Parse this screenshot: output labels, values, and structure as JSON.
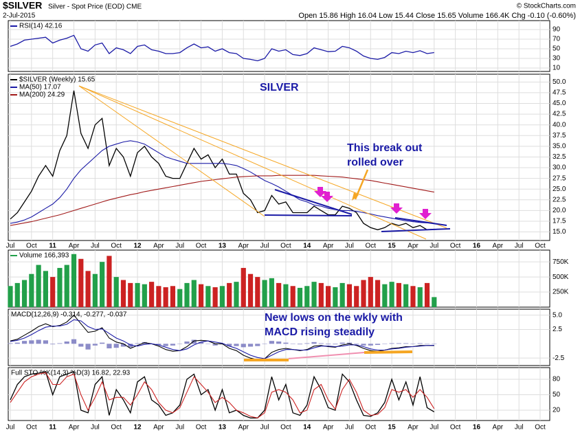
{
  "chart_data": {
    "type": "stock",
    "title": "$SILVER",
    "subtitle": "Silver - Spot Price (EOD) CME",
    "date": "2-Jul-2015",
    "source": "© StockCharts.com",
    "quote": "Open 15.86  High 16.04  Low 15.44  Close 15.65  Volume 166.4K  Chg -0.10 (-0.60%)",
    "annotations": [
      "SILVER",
      "This break out",
      "rolled over",
      "New lows on the wkly with",
      "MACD rising steadily"
    ],
    "xlim": [
      "2010-07",
      "2016-10"
    ],
    "xticks": [
      {
        "value": "2010-07",
        "label": "Jul"
      },
      {
        "value": "2010-10",
        "label": "Oct"
      },
      {
        "value": "2011-01",
        "label": "11"
      },
      {
        "value": "2011-04",
        "label": "Apr"
      },
      {
        "value": "2011-07",
        "label": "Jul"
      },
      {
        "value": "2011-10",
        "label": "Oct"
      },
      {
        "value": "2012-01",
        "label": "12"
      },
      {
        "value": "2012-04",
        "label": "Apr"
      },
      {
        "value": "2012-07",
        "label": "Jul"
      },
      {
        "value": "2012-10",
        "label": "Oct"
      },
      {
        "value": "2013-01",
        "label": "13"
      },
      {
        "value": "2013-04",
        "label": "Apr"
      },
      {
        "value": "2013-07",
        "label": "Jul"
      },
      {
        "value": "2013-10",
        "label": "Oct"
      },
      {
        "value": "2014-01",
        "label": "14"
      },
      {
        "value": "2014-04",
        "label": "Apr"
      },
      {
        "value": "2014-07",
        "label": "Jul"
      },
      {
        "value": "2014-10",
        "label": "Oct"
      },
      {
        "value": "2015-01",
        "label": "15"
      },
      {
        "value": "2015-04",
        "label": "Apr"
      },
      {
        "value": "2015-07",
        "label": "Jul"
      },
      {
        "value": "2015-10",
        "label": "Oct"
      },
      {
        "value": "2016-01",
        "label": "16"
      },
      {
        "value": "2016-04",
        "label": "Apr"
      },
      {
        "value": "2016-07",
        "label": "Jul"
      },
      {
        "value": "2016-10",
        "label": "Oct"
      }
    ],
    "x": [
      "2010-07",
      "2010-08",
      "2010-09",
      "2010-10",
      "2010-11",
      "2010-12",
      "2011-01",
      "2011-02",
      "2011-03",
      "2011-04",
      "2011-05",
      "2011-06",
      "2011-07",
      "2011-08",
      "2011-09",
      "2011-10",
      "2011-11",
      "2011-12",
      "2012-01",
      "2012-02",
      "2012-03",
      "2012-04",
      "2012-05",
      "2012-06",
      "2012-07",
      "2012-08",
      "2012-09",
      "2012-10",
      "2012-11",
      "2012-12",
      "2013-01",
      "2013-02",
      "2013-03",
      "2013-04",
      "2013-05",
      "2013-06",
      "2013-07",
      "2013-08",
      "2013-09",
      "2013-10",
      "2013-11",
      "2013-12",
      "2014-01",
      "2014-02",
      "2014-03",
      "2014-04",
      "2014-05",
      "2014-06",
      "2014-07",
      "2014-08",
      "2014-09",
      "2014-10",
      "2014-11",
      "2014-12",
      "2015-01",
      "2015-02",
      "2015-03",
      "2015-04",
      "2015-05",
      "2015-06",
      "2015-07"
    ],
    "panels": [
      {
        "ylim": [
          0,
          100
        ],
        "yticks": [
          90,
          70,
          50,
          30,
          10
        ],
        "grid": true,
        "series": [
          {
            "name": "RSI(14) 42.16",
            "type": "line",
            "color": "#1a1aa6",
            "values": [
              55,
              60,
              68,
              70,
              72,
              74,
              62,
              68,
              72,
              78,
              50,
              45,
              58,
              62,
              40,
              52,
              48,
              40,
              55,
              58,
              48,
              45,
              40,
              40,
              42,
              52,
              60,
              52,
              54,
              45,
              50,
              42,
              40,
              30,
              28,
              25,
              30,
              50,
              45,
              48,
              38,
              36,
              40,
              52,
              48,
              44,
              45,
              55,
              52,
              45,
              35,
              30,
              28,
              32,
              42,
              40,
              45,
              42,
              46,
              40,
              42.16
            ]
          }
        ]
      },
      {
        "ylim": [
          13,
          51.5
        ],
        "yticks": [
          {
            "value": 50,
            "label": "50.0"
          },
          47.5,
          {
            "value": 45,
            "label": "45.0"
          },
          42.5,
          {
            "value": 40,
            "label": "40.0"
          },
          37.5,
          {
            "value": 35,
            "label": "35.0"
          },
          32.5,
          {
            "value": 30,
            "label": "30.0"
          },
          27.5,
          {
            "value": 25,
            "label": "25.0"
          },
          22.5,
          {
            "value": 20,
            "label": "20.0"
          },
          17.5,
          {
            "value": 15,
            "label": "15.0"
          }
        ],
        "grid": true,
        "series": [
          {
            "name": "$SILVER (Weekly) 15.65",
            "type": "line",
            "color": "#000000",
            "values": [
              18.0,
              19.5,
              22.0,
              24.5,
              28.0,
              30.5,
              28.0,
              34.0,
              37.5,
              48.0,
              38.0,
              34.5,
              40.0,
              41.5,
              30.5,
              34.5,
              32.5,
              28.0,
              33.5,
              35.0,
              32.5,
              31.0,
              28.0,
              27.5,
              27.5,
              31.0,
              34.5,
              32.0,
              33.0,
              30.0,
              32.0,
              28.5,
              28.5,
              24.0,
              22.5,
              19.5,
              20.0,
              23.5,
              21.5,
              22.0,
              19.5,
              19.5,
              19.5,
              21.0,
              20.0,
              19.0,
              19.0,
              21.0,
              20.5,
              19.5,
              17.0,
              16.0,
              15.5,
              16.0,
              17.0,
              16.5,
              17.0,
              16.0,
              16.5,
              15.5,
              15.65
            ]
          },
          {
            "name": "MA(50) 17.07",
            "type": "line",
            "color": "#1a1aa6",
            "values": [
              17.0,
              17.3,
              17.8,
              18.5,
              19.5,
              20.5,
              21.5,
              23,
              25,
              27.5,
              29.5,
              31,
              32.5,
              34,
              35,
              35.5,
              36,
              36.3,
              36,
              35.5,
              34.5,
              33.5,
              32.5,
              32,
              31.5,
              31,
              31,
              31,
              31,
              31,
              31,
              30.8,
              30.5,
              29.8,
              29,
              28,
              27,
              26.3,
              25.5,
              24.5,
              23.5,
              22.5,
              22,
              21.3,
              21,
              20.5,
              20.2,
              20,
              20,
              19.8,
              19.5,
              19.2,
              18.8,
              18.5,
              18.2,
              17.9,
              17.6,
              17.4,
              17.2,
              17.1,
              17.07
            ]
          },
          {
            "name": "MA(200) 24.29",
            "type": "line",
            "color": "#a01818",
            "values": [
              16.5,
              16.8,
              17.1,
              17.4,
              17.8,
              18.2,
              18.6,
              19.0,
              19.5,
              20.0,
              20.5,
              21.0,
              21.5,
              22.0,
              22.5,
              22.9,
              23.3,
              23.7,
              24.0,
              24.4,
              24.7,
              25.0,
              25.3,
              25.6,
              25.9,
              26.2,
              26.5,
              26.8,
              27.0,
              27.2,
              27.4,
              27.6,
              27.8,
              27.9,
              28.0,
              28.1,
              28.1,
              28.1,
              28.2,
              28.2,
              28.2,
              28.2,
              28.2,
              28.2,
              28.1,
              28.0,
              27.9,
              27.8,
              27.6,
              27.4,
              27.2,
              27.0,
              26.7,
              26.4,
              26.1,
              25.8,
              25.5,
              25.2,
              24.9,
              24.6,
              24.29
            ]
          }
        ]
      },
      {
        "ylim": [
          0,
          900000
        ],
        "yticks": [
          {
            "value": 750000,
            "label": "750K"
          },
          {
            "value": 500000,
            "label": "500K"
          },
          {
            "value": 250000,
            "label": "250K"
          }
        ],
        "grid": true,
        "series": [
          {
            "name": "Volume 166,393",
            "type": "bar",
            "color": "#22a04a",
            "down_color": "#cc2222",
            "values": [
              350000,
              400000,
              450000,
              550000,
              700000,
              600000,
              500000,
              650000,
              700000,
              880000,
              800000,
              600000,
              550000,
              750000,
              850000,
              500000,
              450000,
              400000,
              400000,
              380000,
              420000,
              350000,
              330000,
              350000,
              300000,
              400000,
              450000,
              380000,
              350000,
              330000,
              350000,
              400000,
              420000,
              650000,
              550000,
              500000,
              450000,
              480000,
              400000,
              380000,
              350000,
              320000,
              350000,
              420000,
              400000,
              350000,
              330000,
              400000,
              380000,
              350000,
              450000,
              500000,
              450000,
              380000,
              420000,
              400000,
              380000,
              350000,
              330000,
              400000,
              166393
            ]
          }
        ]
      },
      {
        "label": "MACD(12,26,9) -0.314, -0.277, -0.037",
        "ylim": [
          -3.8,
          5.8
        ],
        "yticks": [
          {
            "value": 5,
            "label": "5.0"
          },
          2.5,
          -2.5
        ],
        "grid": true,
        "series": [
          {
            "type": "bar",
            "color": "#8c8cc8",
            "values": [
              0.1,
              0.2,
              0.5,
              0.6,
              0.7,
              0.6,
              -0.1,
              0.1,
              0.4,
              0.8,
              -0.5,
              -1.0,
              -0.3,
              0.2,
              -0.8,
              -0.7,
              -0.5,
              -0.6,
              0.1,
              0.3,
              0,
              -0.2,
              -0.4,
              -0.3,
              0,
              0.4,
              0.7,
              0.3,
              0,
              -0.3,
              -0.1,
              -0.4,
              -0.4,
              -0.6,
              -0.5,
              -0.4,
              0,
              0.5,
              0.4,
              0.2,
              0,
              -0.1,
              0.1,
              0.3,
              0.1,
              -0.1,
              -0.1,
              0.2,
              0.2,
              -0.1,
              -0.3,
              -0.3,
              -0.2,
              0,
              0.1,
              0.1,
              0.1,
              0,
              0.1,
              0,
              -0.037
            ]
          },
          {
            "type": "line",
            "color": "#000000",
            "values": [
              0.5,
              0.8,
              1.5,
              2.2,
              3.0,
              3.5,
              3.0,
              3.2,
              3.8,
              5.0,
              3.5,
              2.0,
              2.2,
              2.8,
              1.0,
              0.3,
              0,
              -0.8,
              -0.3,
              0.2,
              0,
              -0.4,
              -1.0,
              -1.3,
              -1.2,
              -0.5,
              0.5,
              0.6,
              0.5,
              0,
              0,
              -0.8,
              -1.2,
              -2.0,
              -2.5,
              -2.8,
              -2.6,
              -1.5,
              -1.0,
              -0.8,
              -1.0,
              -1.2,
              -1.0,
              -0.4,
              -0.3,
              -0.5,
              -0.6,
              -0.2,
              0,
              -0.3,
              -0.8,
              -1.2,
              -1.3,
              -1.1,
              -0.8,
              -0.7,
              -0.5,
              -0.5,
              -0.3,
              -0.3,
              -0.314
            ]
          },
          {
            "type": "line",
            "color": "#1a1aa6",
            "values": [
              0.4,
              0.6,
              1.0,
              1.6,
              2.3,
              2.9,
              3.1,
              3.1,
              3.4,
              4.2,
              4.0,
              3.0,
              2.5,
              2.6,
              1.8,
              1.0,
              0.5,
              -0.2,
              -0.4,
              -0.1,
              0,
              -0.2,
              -0.6,
              -1.0,
              -1.2,
              -0.9,
              -0.2,
              0.3,
              0.5,
              0.3,
              0.1,
              -0.4,
              -0.8,
              -1.4,
              -2.0,
              -2.4,
              -2.6,
              -2.0,
              -1.4,
              -1.0,
              -1.0,
              -1.1,
              -1.1,
              -0.7,
              -0.4,
              -0.4,
              -0.5,
              -0.4,
              -0.2,
              -0.2,
              -0.5,
              -0.9,
              -1.1,
              -1.1,
              -0.9,
              -0.8,
              -0.6,
              -0.5,
              -0.4,
              -0.3,
              -0.277
            ]
          }
        ]
      },
      {
        "label": "Full STO %K(14,3) %D(3) 16.82, 22.93",
        "ylim": [
          0,
          100
        ],
        "yticks": [
          80,
          50,
          20
        ],
        "grid": true,
        "series": [
          {
            "type": "line",
            "color": "#000000",
            "values": [
              40,
              70,
              85,
              90,
              92,
              95,
              50,
              85,
              90,
              95,
              20,
              15,
              70,
              85,
              10,
              60,
              40,
              15,
              75,
              85,
              40,
              30,
              10,
              15,
              30,
              80,
              90,
              50,
              60,
              20,
              60,
              15,
              20,
              10,
              5,
              5,
              20,
              85,
              40,
              70,
              15,
              10,
              30,
              85,
              60,
              25,
              20,
              90,
              75,
              40,
              10,
              8,
              15,
              35,
              80,
              40,
              75,
              30,
              85,
              25,
              16.82
            ]
          },
          {
            "type": "line",
            "color": "#cc2222",
            "values": [
              35,
              55,
              75,
              85,
              90,
              93,
              70,
              70,
              85,
              90,
              50,
              20,
              45,
              75,
              40,
              45,
              45,
              30,
              50,
              75,
              60,
              35,
              20,
              15,
              25,
              55,
              85,
              70,
              55,
              35,
              45,
              35,
              20,
              15,
              8,
              5,
              15,
              55,
              60,
              55,
              40,
              15,
              20,
              60,
              70,
              40,
              22,
              60,
              80,
              55,
              20,
              10,
              12,
              25,
              60,
              55,
              60,
              45,
              60,
              45,
              22.93
            ]
          }
        ]
      }
    ]
  }
}
